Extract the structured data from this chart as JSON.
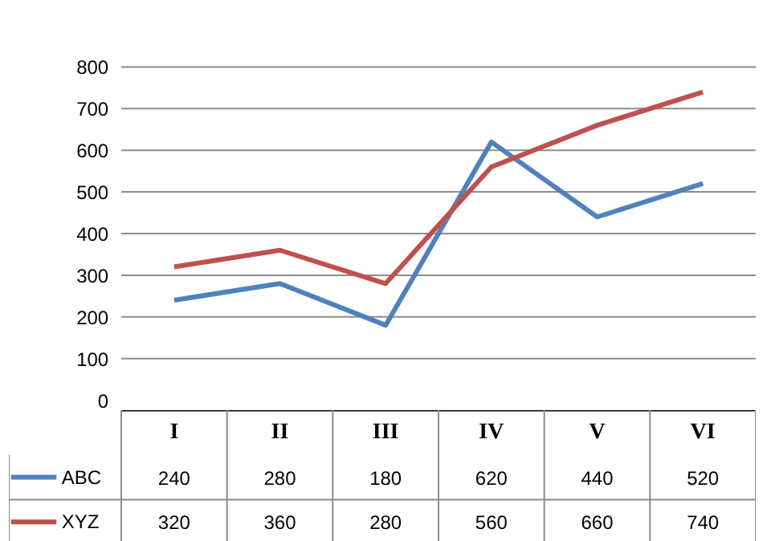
{
  "chart_data": {
    "type": "line",
    "categories": [
      "I",
      "II",
      "III",
      "IV",
      "V",
      "VI"
    ],
    "series": [
      {
        "name": "ABC",
        "color": "#4f81bd",
        "values": [
          240,
          280,
          180,
          620,
          440,
          520
        ]
      },
      {
        "name": "XYZ",
        "color": "#c0504d",
        "values": [
          320,
          360,
          280,
          560,
          660,
          740
        ]
      }
    ],
    "ylim": [
      0,
      800
    ],
    "yticks": [
      0,
      100,
      200,
      300,
      400,
      500,
      600,
      700,
      800
    ],
    "grid": "y",
    "legend": "bottom",
    "data_labels": true,
    "marker": "none",
    "line_style": "solid"
  }
}
